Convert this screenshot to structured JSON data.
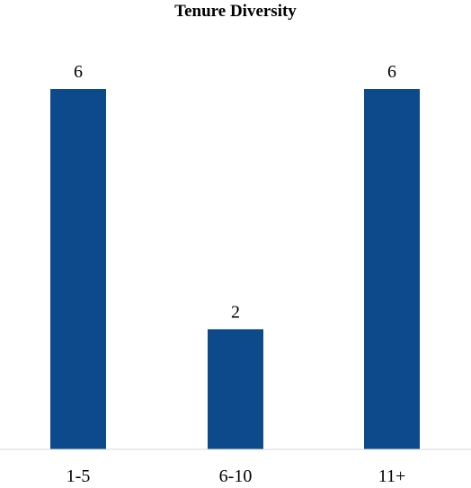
{
  "chart_data": {
    "type": "bar",
    "title": "Tenure Diversity",
    "categories": [
      "1-5",
      "6-10",
      "11+"
    ],
    "values": [
      6,
      2,
      6
    ],
    "data_labels": [
      "6",
      "2",
      "6"
    ],
    "xlabel": "",
    "ylabel": "",
    "ylim": [
      0,
      6
    ],
    "grid": false,
    "legend": "none",
    "bar_color": "#0d4a8c",
    "axis_color": "#d9d9d9"
  }
}
